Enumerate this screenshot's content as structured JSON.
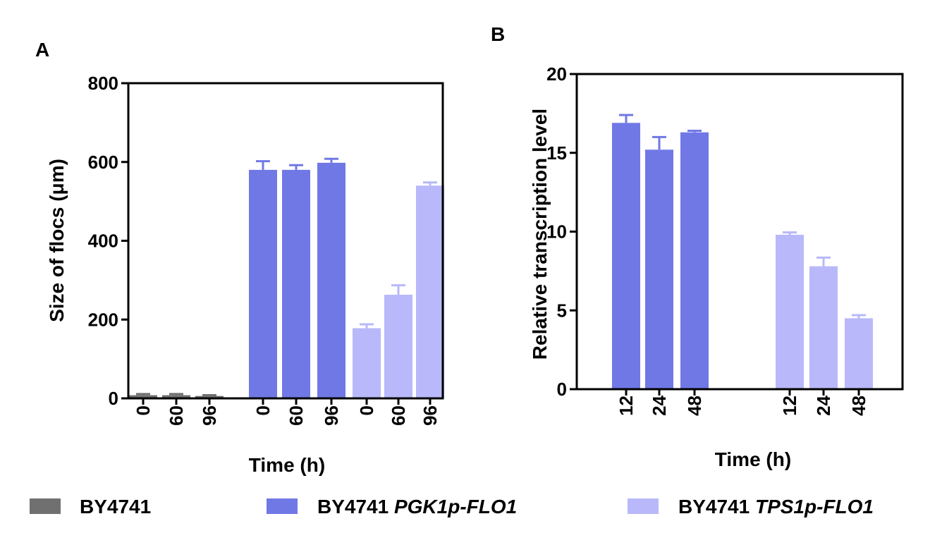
{
  "colors": {
    "BY4741": "#707070",
    "PGK1p": "#7078e6",
    "TPS1p": "#b8b8fa"
  },
  "legend": {
    "items": [
      {
        "key": "BY4741",
        "base": "BY4741",
        "italic": ""
      },
      {
        "key": "PGK1p",
        "base": "BY4741 ",
        "italic": "PGK1p-FLO1"
      },
      {
        "key": "TPS1p",
        "base": "BY4741 ",
        "italic": "TPS1p-FLO1"
      }
    ]
  },
  "chart_data": [
    {
      "panel_label": "A",
      "type": "bar",
      "ylabel": "Size of flocs (μm)",
      "xlabel": "Time (h)",
      "ylim": [
        0,
        800
      ],
      "yticks": [
        0,
        200,
        400,
        600,
        800
      ],
      "groups": [
        {
          "series": "BY4741",
          "categories": [
            "0",
            "60",
            "96"
          ],
          "values": [
            8,
            8,
            6
          ],
          "errors": [
            3,
            3,
            2
          ]
        },
        {
          "series": "PGK1p",
          "categories": [
            "0",
            "60",
            "96"
          ],
          "values": [
            580,
            580,
            598
          ],
          "errors": [
            22,
            12,
            10
          ]
        },
        {
          "series": "TPS1p",
          "categories": [
            "0",
            "60",
            "96"
          ],
          "values": [
            178,
            263,
            540
          ],
          "errors": [
            10,
            24,
            8
          ]
        }
      ]
    },
    {
      "panel_label": "B",
      "type": "bar",
      "ylabel": "Relative transcription level",
      "xlabel": "Time (h)",
      "ylim": [
        0,
        20
      ],
      "yticks": [
        0,
        5,
        10,
        15,
        20
      ],
      "groups": [
        {
          "series": "PGK1p",
          "categories": [
            "12",
            "24",
            "48"
          ],
          "values": [
            16.9,
            15.2,
            16.3
          ],
          "errors": [
            0.5,
            0.8,
            0.1
          ]
        },
        {
          "series": "TPS1p",
          "categories": [
            "12",
            "24",
            "48"
          ],
          "values": [
            9.8,
            7.8,
            4.5
          ],
          "errors": [
            0.15,
            0.55,
            0.2
          ]
        }
      ]
    }
  ]
}
